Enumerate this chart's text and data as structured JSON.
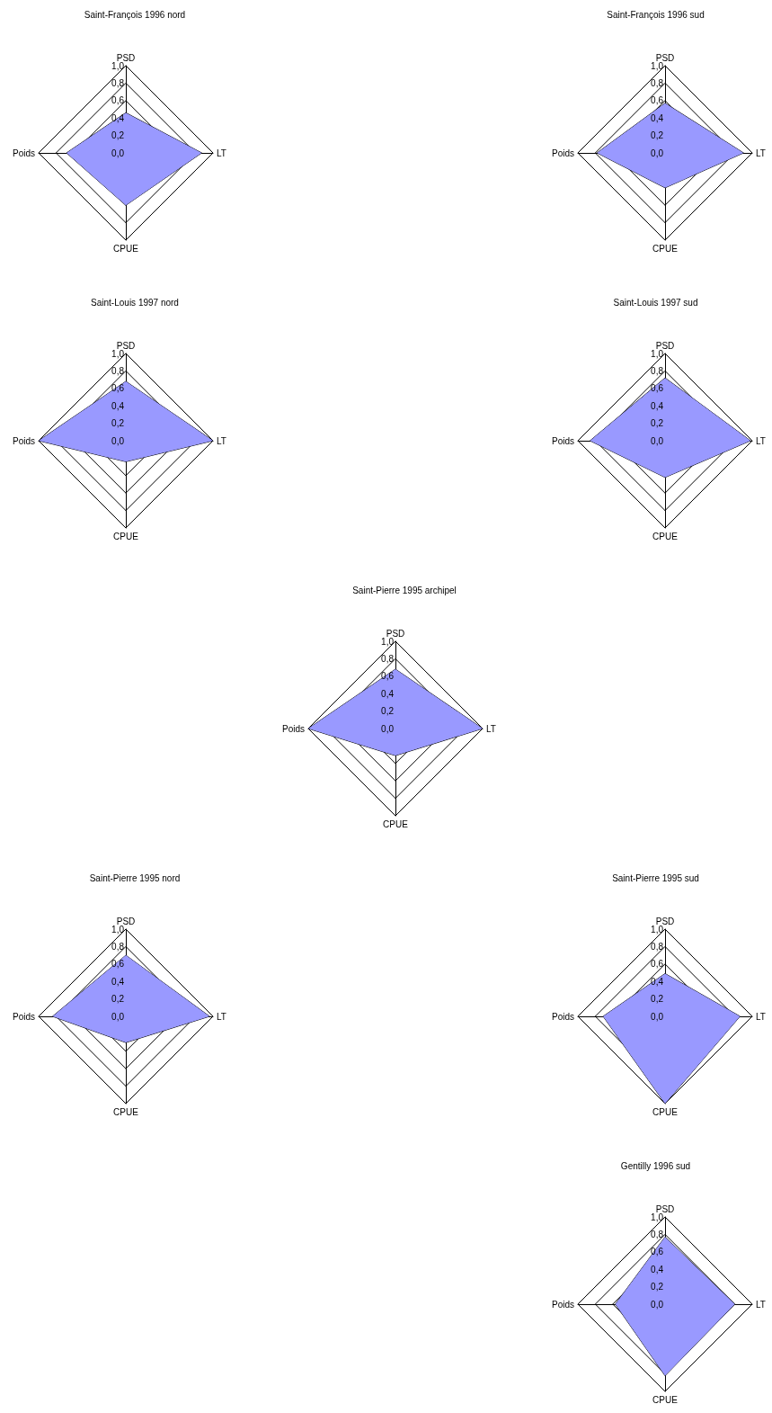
{
  "chart_data": [
    {
      "type": "radar",
      "title": "Saint-François 1996 nord",
      "categories": [
        "PSD",
        "LT",
        "CPUE",
        "Poids"
      ],
      "ylim": [
        0,
        1
      ],
      "yticks": [
        {
          "value": 0,
          "label": "0,0"
        },
        {
          "value": 0.2,
          "label": "0,2"
        },
        {
          "value": 0.4,
          "label": "0,4"
        },
        {
          "value": 0.6,
          "label": "0,6"
        },
        {
          "value": 0.8,
          "label": "0,8"
        },
        {
          "value": 1,
          "label": "1,0"
        }
      ],
      "marker": "none",
      "series": [
        {
          "color": "#9999ff",
          "values": [
            0.46,
            0.87,
            0.6,
            0.68
          ]
        }
      ]
    },
    {
      "type": "radar",
      "title": "Saint-François 1996 sud",
      "categories": [
        "PSD",
        "LT",
        "CPUE",
        "Poids"
      ],
      "ylim": [
        0,
        1
      ],
      "yticks": [
        {
          "value": 0,
          "label": "0,0"
        },
        {
          "value": 0.2,
          "label": "0,2"
        },
        {
          "value": 0.4,
          "label": "0,4"
        },
        {
          "value": 0.6,
          "label": "0,6"
        },
        {
          "value": 0.8,
          "label": "0,8"
        },
        {
          "value": 1,
          "label": "1,0"
        }
      ],
      "marker": "none",
      "series": [
        {
          "color": "#9999ff",
          "values": [
            0.57,
            0.9,
            0.4,
            0.78
          ]
        }
      ]
    },
    {
      "type": "radar",
      "title": "Saint-Louis 1997 nord",
      "categories": [
        "PSD",
        "LT",
        "CPUE",
        "Poids"
      ],
      "ylim": [
        0,
        1
      ],
      "yticks": [
        {
          "value": 0,
          "label": "0,0"
        },
        {
          "value": 0.2,
          "label": "0,2"
        },
        {
          "value": 0.4,
          "label": "0,4"
        },
        {
          "value": 0.6,
          "label": "0,6"
        },
        {
          "value": 0.8,
          "label": "0,8"
        },
        {
          "value": 1,
          "label": "1,0"
        }
      ],
      "marker": "none",
      "series": [
        {
          "color": "#9999ff",
          "values": [
            0.68,
            1,
            0.24,
            1
          ]
        }
      ]
    },
    {
      "type": "radar",
      "title": "Saint-Louis 1997 sud",
      "categories": [
        "PSD",
        "LT",
        "CPUE",
        "Poids"
      ],
      "ylim": [
        0,
        1
      ],
      "yticks": [
        {
          "value": 0,
          "label": "0,0"
        },
        {
          "value": 0.2,
          "label": "0,2"
        },
        {
          "value": 0.4,
          "label": "0,4"
        },
        {
          "value": 0.6,
          "label": "0,6"
        },
        {
          "value": 0.8,
          "label": "0,8"
        },
        {
          "value": 1,
          "label": "1,0"
        }
      ],
      "marker": "none",
      "series": [
        {
          "color": "#9999ff",
          "values": [
            0.72,
            0.98,
            0.42,
            0.86
          ]
        }
      ]
    },
    {
      "type": "radar",
      "title": "Saint-Pierre 1995 archipel",
      "categories": [
        "PSD",
        "LT",
        "CPUE",
        "Poids"
      ],
      "ylim": [
        0,
        1
      ],
      "yticks": [
        {
          "value": 0,
          "label": "0,0"
        },
        {
          "value": 0.2,
          "label": "0,2"
        },
        {
          "value": 0.4,
          "label": "0,4"
        },
        {
          "value": 0.6,
          "label": "0,6"
        },
        {
          "value": 0.8,
          "label": "0,8"
        },
        {
          "value": 1,
          "label": "1,0"
        }
      ],
      "marker": "none",
      "series": [
        {
          "color": "#9999ff",
          "values": [
            0.68,
            1,
            0.31,
            1
          ]
        }
      ]
    },
    {
      "type": "radar",
      "title": "Saint-Pierre 1995 nord",
      "categories": [
        "PSD",
        "LT",
        "CPUE",
        "Poids"
      ],
      "ylim": [
        0,
        1
      ],
      "yticks": [
        {
          "value": 0,
          "label": "0,0"
        },
        {
          "value": 0.2,
          "label": "0,2"
        },
        {
          "value": 0.4,
          "label": "0,4"
        },
        {
          "value": 0.6,
          "label": "0,6"
        },
        {
          "value": 0.8,
          "label": "0,8"
        },
        {
          "value": 1,
          "label": "1,0"
        }
      ],
      "marker": "none",
      "series": [
        {
          "color": "#9999ff",
          "values": [
            0.7,
            0.96,
            0.3,
            0.84
          ]
        }
      ]
    },
    {
      "type": "radar",
      "title": "Saint-Pierre 1995 sud",
      "categories": [
        "PSD",
        "LT",
        "CPUE",
        "Poids"
      ],
      "ylim": [
        0,
        1
      ],
      "yticks": [
        {
          "value": 0,
          "label": "0,0"
        },
        {
          "value": 0.2,
          "label": "0,2"
        },
        {
          "value": 0.4,
          "label": "0,4"
        },
        {
          "value": 0.6,
          "label": "0,6"
        },
        {
          "value": 0.8,
          "label": "0,8"
        },
        {
          "value": 1,
          "label": "1,0"
        }
      ],
      "marker": "none",
      "series": [
        {
          "color": "#9999ff",
          "values": [
            0.49,
            0.86,
            1,
            0.71
          ]
        }
      ]
    },
    {
      "type": "radar",
      "title": "Gentilly 1996 sud",
      "categories": [
        "PSD",
        "LT",
        "CPUE",
        "Poids"
      ],
      "ylim": [
        0,
        1
      ],
      "yticks": [
        {
          "value": 0,
          "label": "0,0"
        },
        {
          "value": 0.2,
          "label": "0,2"
        },
        {
          "value": 0.4,
          "label": "0,4"
        },
        {
          "value": 0.6,
          "label": "0,6"
        },
        {
          "value": 0.8,
          "label": "0,8"
        },
        {
          "value": 1,
          "label": "1,0"
        }
      ],
      "marker": "none",
      "series": [
        {
          "color": "#9999ff",
          "values": [
            0.77,
            0.8,
            0.82,
            0.57
          ]
        }
      ]
    }
  ]
}
